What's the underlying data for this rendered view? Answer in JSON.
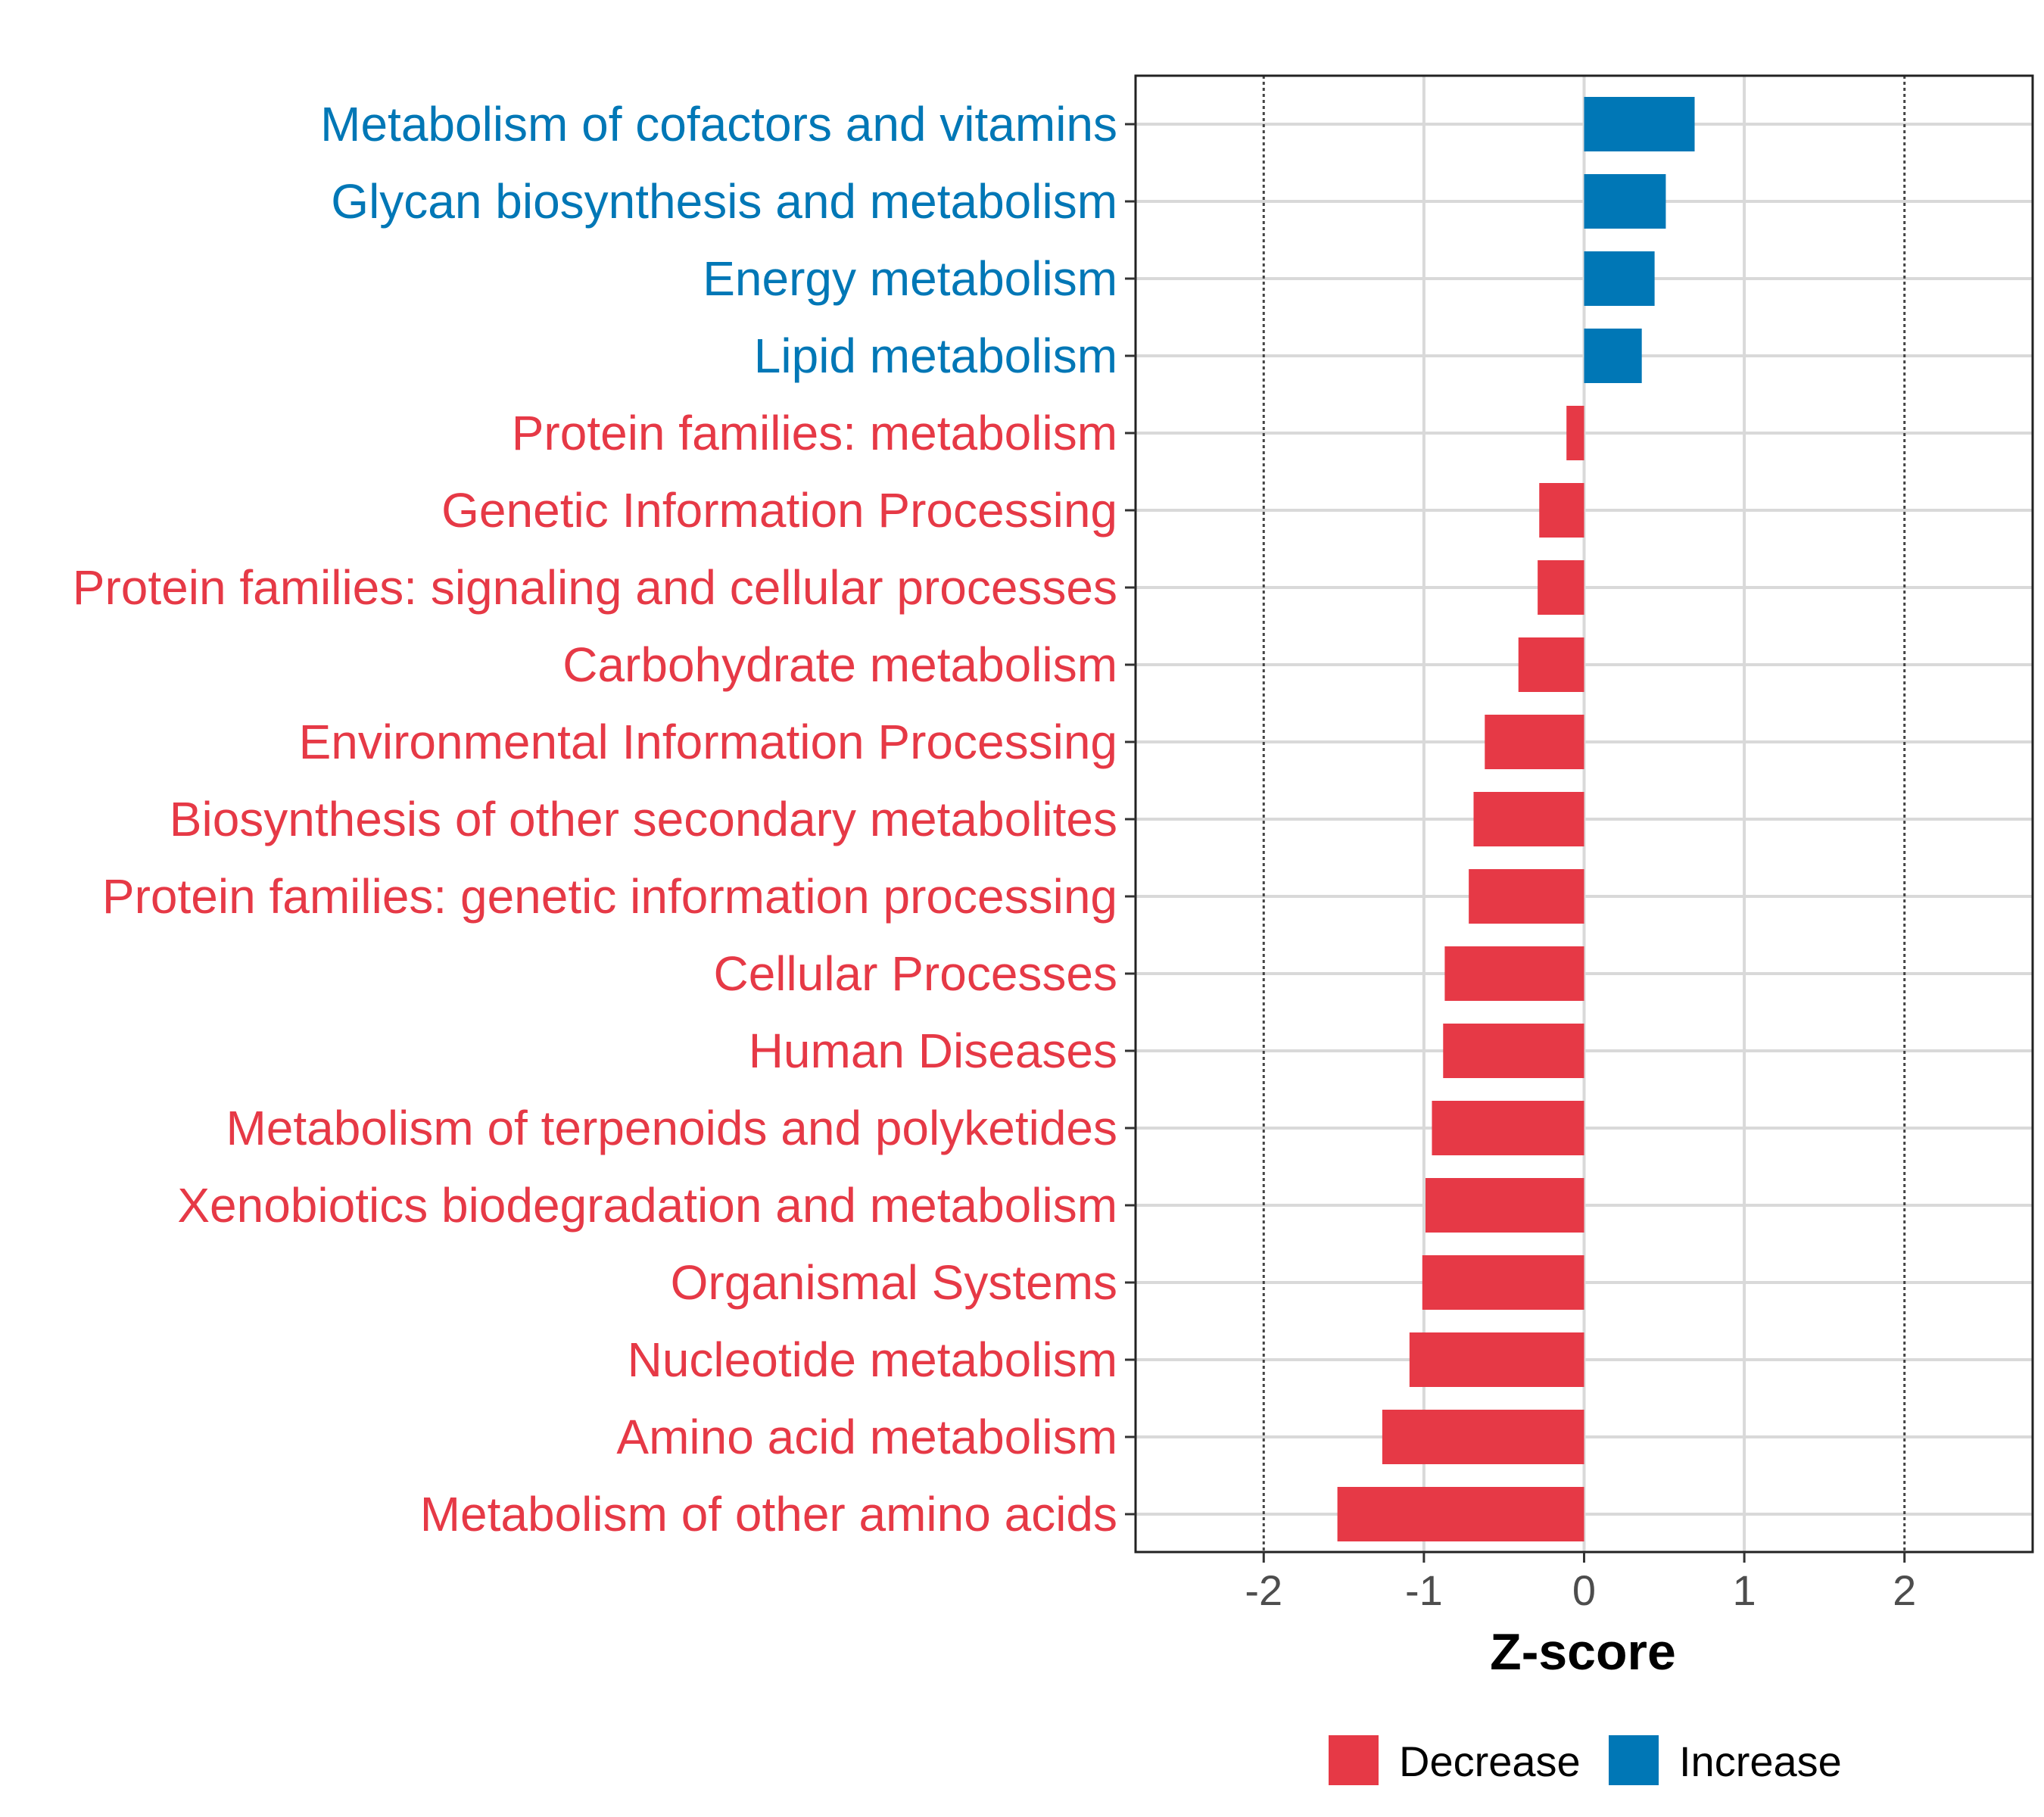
{
  "chart_data": {
    "type": "bar",
    "orientation": "horizontal",
    "title": "",
    "xlabel": "Z-score",
    "ylabel": "",
    "xlim": [
      -2.8,
      2.8
    ],
    "xticks": [
      -2,
      -1,
      0,
      1,
      2
    ],
    "xtick_labels": [
      "-2",
      "-1",
      "0",
      "1",
      "2"
    ],
    "reference_lines": [
      -2,
      2
    ],
    "grid": true,
    "legend_position": "bottom",
    "colors": {
      "Decrease": "#e63946",
      "Increase": "#0077b6"
    },
    "legend": [
      {
        "name": "Decrease",
        "color": "#e63946"
      },
      {
        "name": "Increase",
        "color": "#0077b6"
      }
    ],
    "categories": [
      "Metabolism of cofactors and vitamins",
      "Glycan biosynthesis and metabolism",
      "Energy metabolism",
      "Lipid metabolism",
      "Protein families: metabolism",
      "Genetic Information Processing",
      "Protein families: signaling and cellular processes",
      "Carbohydrate metabolism",
      "Environmental Information Processing",
      "Biosynthesis of other secondary metabolites",
      "Protein families: genetic information processing",
      "Cellular Processes",
      "Human Diseases",
      "Metabolism of terpenoids and polyketides",
      "Xenobiotics biodegradation and metabolism",
      "Organismal Systems",
      "Nucleotide metabolism",
      "Amino acid metabolism",
      "Metabolism of other amino acids"
    ],
    "values": [
      0.69,
      0.51,
      0.44,
      0.36,
      -0.11,
      -0.28,
      -0.29,
      -0.41,
      -0.62,
      -0.69,
      -0.72,
      -0.87,
      -0.88,
      -0.95,
      -0.99,
      -1.01,
      -1.09,
      -1.26,
      -1.54
    ],
    "groups": [
      "Increase",
      "Increase",
      "Increase",
      "Increase",
      "Decrease",
      "Decrease",
      "Decrease",
      "Decrease",
      "Decrease",
      "Decrease",
      "Decrease",
      "Decrease",
      "Decrease",
      "Decrease",
      "Decrease",
      "Decrease",
      "Decrease",
      "Decrease",
      "Decrease"
    ]
  }
}
